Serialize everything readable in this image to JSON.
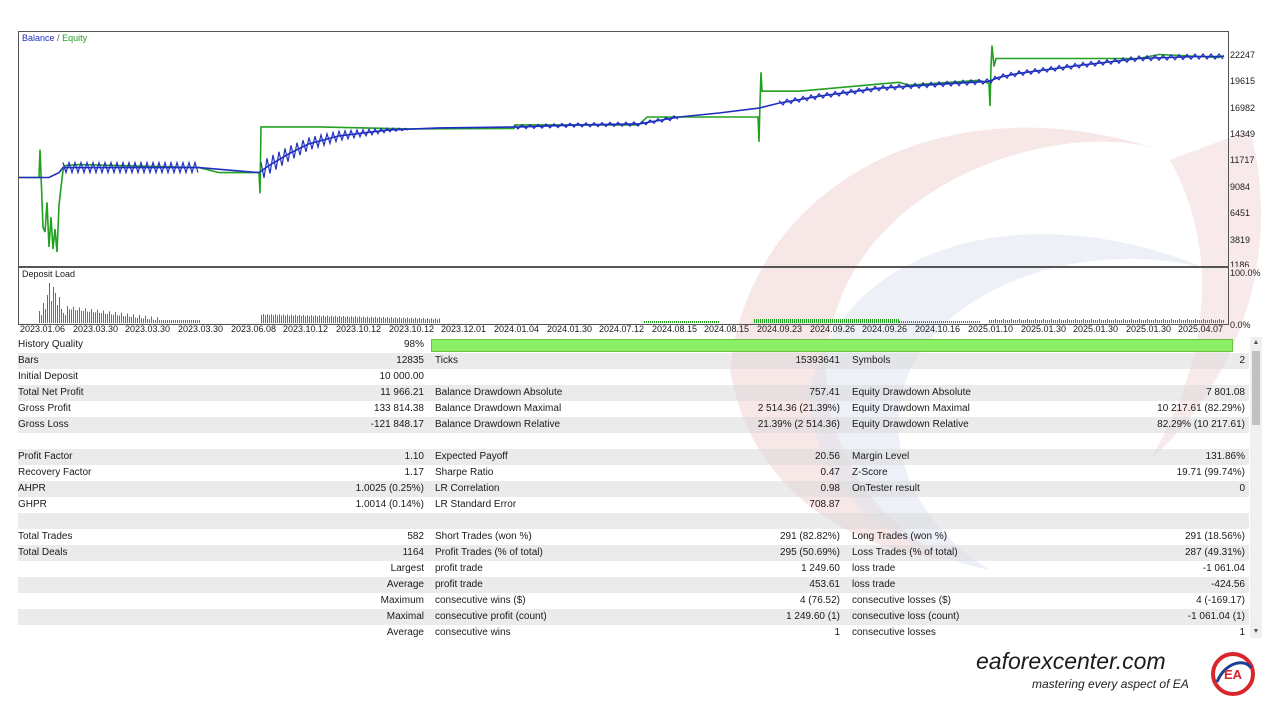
{
  "colors": {
    "balance": "#1f2fc0",
    "equity": "#22a020",
    "quality_bar": "#8cf066",
    "brand_red": "#d9262b",
    "brand_blue": "#1c3f94"
  },
  "chart": {
    "legend_balance": "Balance",
    "legend_sep": "/",
    "legend_equity": "Equity",
    "y_labels": [
      "22247",
      "19615",
      "16982",
      "14349",
      "11717",
      "9084",
      "6451",
      "3819",
      "1186"
    ],
    "load_label": "Deposit Load",
    "load_y_labels": [
      "100.0%",
      "0.0%"
    ],
    "x_labels": [
      "2023.01.06",
      "2023.03.30",
      "2023.03.30",
      "2023.03.30",
      "2023.06.08",
      "2023.10.12",
      "2023.10.12",
      "2023.10.12",
      "2023.12.01",
      "2024.01.04",
      "2024.01.30",
      "2024.07.12",
      "2024.08.15",
      "2024.08.15",
      "2024.09.23",
      "2024.09.26",
      "2024.09.26",
      "2024.10.16",
      "2025.01.10",
      "2025.01.30",
      "2025.01.30",
      "2025.01.30",
      "2025.04.07"
    ]
  },
  "chart_data": {
    "type": "line",
    "title": "",
    "series": [
      {
        "name": "Balance",
        "values": [
          10000,
          10400,
          10400,
          10400,
          10400,
          14700,
          14700,
          14900,
          15100,
          15500,
          16500,
          17900,
          18700,
          19900,
          22000
        ]
      },
      {
        "name": "Equity",
        "values": [
          10000,
          3000,
          10200,
          10300,
          10400,
          14800,
          14800,
          14900,
          15200,
          15600,
          16600,
          18000,
          19000,
          19900,
          21900
        ]
      }
    ],
    "ylim": [
      1186,
      22247
    ]
  },
  "report": {
    "history_quality_label": "History Quality",
    "history_quality_value": "98%",
    "history_quality": 0.98,
    "rows": [
      {
        "l1": "Bars",
        "v1": "12835",
        "l2": "Ticks",
        "v2": "15393641",
        "l3": "Symbols",
        "v3": "2"
      },
      {
        "l1": "Initial Deposit",
        "v1": "10 000.00",
        "l2": "",
        "v2": "",
        "l3": "",
        "v3": ""
      },
      {
        "l1": "Total Net Profit",
        "v1": "11 966.21",
        "l2": "Balance Drawdown Absolute",
        "v2": "757.41",
        "l3": "Equity Drawdown Absolute",
        "v3": "7 801.08"
      },
      {
        "l1": "Gross Profit",
        "v1": "133 814.38",
        "l2": "Balance Drawdown Maximal",
        "v2": "2 514.36 (21.39%)",
        "l3": "Equity Drawdown Maximal",
        "v3": "10 217.61 (82.29%)"
      },
      {
        "l1": "Gross Loss",
        "v1": "-121 848.17",
        "l2": "Balance Drawdown Relative",
        "v2": "21.39% (2 514.36)",
        "l3": "Equity Drawdown Relative",
        "v3": "82.29% (10 217.61)"
      },
      {
        "l1": "",
        "v1": "",
        "l2": "",
        "v2": "",
        "l3": "",
        "v3": ""
      },
      {
        "l1": "Profit Factor",
        "v1": "1.10",
        "l2": "Expected Payoff",
        "v2": "20.56",
        "l3": "Margin Level",
        "v3": "131.86%"
      },
      {
        "l1": "Recovery Factor",
        "v1": "1.17",
        "l2": "Sharpe Ratio",
        "v2": "0.47",
        "l3": "Z-Score",
        "v3": "19.71 (99.74%)"
      },
      {
        "l1": "AHPR",
        "v1": "1.0025 (0.25%)",
        "l2": "LR Correlation",
        "v2": "0.98",
        "l3": "OnTester result",
        "v3": "0"
      },
      {
        "l1": "GHPR",
        "v1": "1.0014 (0.14%)",
        "l2": "LR Standard Error",
        "v2": "708.87",
        "l3": "",
        "v3": ""
      },
      {
        "l1": "",
        "v1": "",
        "l2": "",
        "v2": "",
        "l3": "",
        "v3": ""
      },
      {
        "l1": "Total Trades",
        "v1": "582",
        "l2": "Short Trades (won %)",
        "v2": "291 (82.82%)",
        "l3": "Long Trades (won %)",
        "v3": "291 (18.56%)"
      },
      {
        "l1": "Total Deals",
        "v1": "1164",
        "l2": "Profit Trades (% of total)",
        "v2": "295 (50.69%)",
        "l3": "Loss Trades (% of total)",
        "v3": "287 (49.31%)"
      },
      {
        "l1": "",
        "v1": "Largest",
        "l2": "profit trade",
        "v2": "1 249.60",
        "l3": "loss trade",
        "v3": "-1 061.04"
      },
      {
        "l1": "",
        "v1": "Average",
        "l2": "profit trade",
        "v2": "453.61",
        "l3": "loss trade",
        "v3": "-424.56"
      },
      {
        "l1": "",
        "v1": "Maximum",
        "l2": "consecutive wins ($)",
        "v2": "4 (76.52)",
        "l3": "consecutive losses ($)",
        "v3": "4 (-169.17)"
      },
      {
        "l1": "",
        "v1": "Maximal",
        "l2": "consecutive profit (count)",
        "v2": "1 249.60 (1)",
        "l3": "consecutive loss (count)",
        "v3": "-1 061.04 (1)"
      },
      {
        "l1": "",
        "v1": "Average",
        "l2": "consecutive wins",
        "v2": "1",
        "l3": "consecutive losses",
        "v3": "1"
      }
    ]
  },
  "brand": {
    "name": "eaforexcenter.com",
    "tagline": "mastering every aspect of EA",
    "logo_text": "EA"
  }
}
